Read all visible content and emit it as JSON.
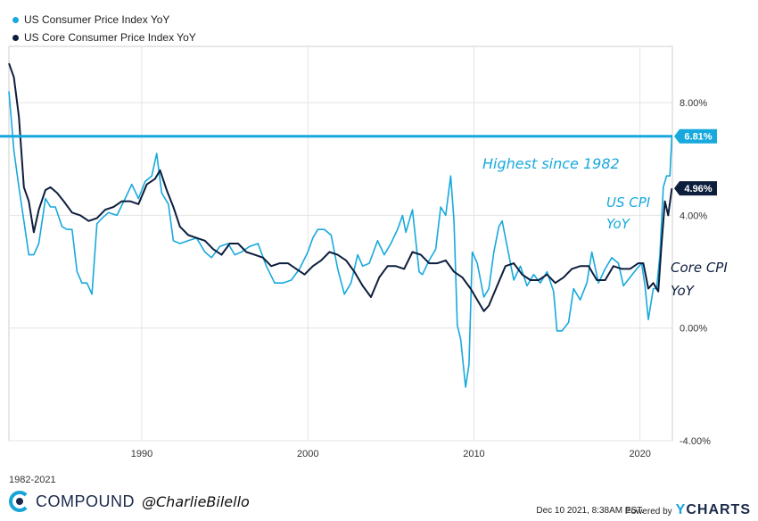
{
  "legend": [
    {
      "label": "US Consumer Price Index YoY",
      "color": "#17a9dd"
    },
    {
      "label": "US Core Consumer Price Index YoY",
      "color": "#0d1e3d"
    }
  ],
  "annotations": {
    "highest": "Highest since 1982",
    "cpi_line1": "US CPI",
    "cpi_line2": "YoY",
    "core_line1": "Core CPI",
    "core_line2": "YoY"
  },
  "footer": {
    "range": "1982-2021",
    "brand": "COMPOUND",
    "handle": "@CharlieBilello",
    "timestamp": "Dec 10 2021, 8:38AM EST.",
    "powered_by": "Powered by",
    "ycharts_y": "Y",
    "ycharts_rest": "CHARTS"
  },
  "chart_data": {
    "type": "line",
    "title": "",
    "xlabel": "",
    "ylabel": "",
    "xlim": [
      1982,
      2021.95
    ],
    "ylim": [
      -4,
      10
    ],
    "x_ticks": [
      1990,
      2000,
      2010,
      2020
    ],
    "y_ticks": [
      {
        "v": 8,
        "label": "8.00%"
      },
      {
        "v": 4,
        "label": "4.00%"
      },
      {
        "v": 0,
        "label": "0.00%"
      },
      {
        "v": -4,
        "label": "-4.00%"
      }
    ],
    "grid": true,
    "reference_line": {
      "value": 6.81,
      "label": "Highest since 1982"
    },
    "end_labels": [
      {
        "series": "US Consumer Price Index YoY",
        "value": 6.81,
        "label": "6.81%"
      },
      {
        "series": "US Core Consumer Price Index YoY",
        "value": 4.96,
        "label": "4.96%"
      }
    ],
    "series": [
      {
        "name": "US Consumer Price Index YoY",
        "color": "#17a9dd",
        "x": [
          1982.0,
          1982.3,
          1982.6,
          1982.9,
          1983.2,
          1983.5,
          1983.8,
          1984.2,
          1984.5,
          1984.8,
          1985.2,
          1985.5,
          1985.8,
          1986.1,
          1986.4,
          1986.7,
          1987.0,
          1987.3,
          1987.6,
          1988.0,
          1988.5,
          1989.0,
          1989.4,
          1989.8,
          1990.2,
          1990.6,
          1990.9,
          1991.2,
          1991.6,
          1991.9,
          1992.3,
          1992.8,
          1993.3,
          1993.8,
          1994.2,
          1994.7,
          1995.2,
          1995.6,
          1996.0,
          1996.5,
          1997.0,
          1997.5,
          1998.0,
          1998.5,
          1999.0,
          1999.5,
          2000.0,
          2000.3,
          2000.6,
          2001.0,
          2001.4,
          2001.8,
          2002.2,
          2002.6,
          2003.0,
          2003.3,
          2003.7,
          2004.2,
          2004.6,
          2005.0,
          2005.4,
          2005.7,
          2005.9,
          2006.3,
          2006.7,
          2006.9,
          2007.3,
          2007.7,
          2008.0,
          2008.3,
          2008.6,
          2008.8,
          2009.0,
          2009.2,
          2009.5,
          2009.7,
          2009.9,
          2010.2,
          2010.6,
          2010.9,
          2011.2,
          2011.5,
          2011.7,
          2012.0,
          2012.4,
          2012.8,
          2013.2,
          2013.6,
          2014.0,
          2014.4,
          2014.8,
          2015.0,
          2015.3,
          2015.7,
          2016.0,
          2016.4,
          2016.8,
          2017.1,
          2017.5,
          2017.9,
          2018.3,
          2018.7,
          2019.0,
          2019.4,
          2019.8,
          2020.1,
          2020.3,
          2020.5,
          2020.8,
          2021.0,
          2021.2,
          2021.4,
          2021.6,
          2021.8,
          2021.92
        ],
        "y": [
          8.4,
          6.3,
          5.0,
          3.8,
          2.6,
          2.6,
          3.0,
          4.6,
          4.3,
          4.3,
          3.6,
          3.5,
          3.5,
          2.0,
          1.6,
          1.6,
          1.2,
          3.7,
          3.9,
          4.1,
          4.0,
          4.6,
          5.1,
          4.6,
          5.2,
          5.4,
          6.2,
          4.8,
          4.4,
          3.1,
          3.0,
          3.1,
          3.2,
          2.7,
          2.5,
          2.9,
          3.0,
          2.6,
          2.7,
          2.9,
          3.0,
          2.2,
          1.6,
          1.6,
          1.7,
          2.1,
          2.7,
          3.2,
          3.5,
          3.5,
          3.3,
          2.1,
          1.2,
          1.6,
          2.6,
          2.2,
          2.3,
          3.1,
          2.6,
          3.0,
          3.5,
          4.0,
          3.4,
          4.2,
          2.0,
          1.9,
          2.4,
          2.8,
          4.3,
          4.0,
          5.4,
          3.8,
          0.1,
          -0.4,
          -2.1,
          -1.3,
          2.7,
          2.3,
          1.1,
          1.4,
          2.7,
          3.6,
          3.8,
          2.9,
          1.7,
          2.2,
          1.5,
          1.9,
          1.6,
          2.0,
          1.3,
          -0.1,
          -0.1,
          0.2,
          1.4,
          1.0,
          1.6,
          2.7,
          1.6,
          2.1,
          2.5,
          2.3,
          1.5,
          1.8,
          2.1,
          2.3,
          1.5,
          0.3,
          1.4,
          1.4,
          2.6,
          5.0,
          5.4,
          5.4,
          6.81
        ]
      },
      {
        "name": "US Core Consumer Price Index YoY",
        "color": "#0d1e3d",
        "x": [
          1982.0,
          1982.3,
          1982.6,
          1982.9,
          1983.2,
          1983.5,
          1983.8,
          1984.2,
          1984.5,
          1984.9,
          1985.3,
          1985.8,
          1986.3,
          1986.8,
          1987.3,
          1987.8,
          1988.3,
          1988.8,
          1989.3,
          1989.8,
          1990.3,
          1990.8,
          1991.1,
          1991.5,
          1991.9,
          1992.3,
          1992.8,
          1993.3,
          1993.8,
          1994.3,
          1994.8,
          1995.3,
          1995.8,
          1996.3,
          1996.8,
          1997.3,
          1997.8,
          1998.3,
          1998.8,
          1999.3,
          1999.8,
          2000.3,
          2000.8,
          2001.3,
          2001.8,
          2002.3,
          2002.8,
          2003.3,
          2003.8,
          2004.3,
          2004.8,
          2005.3,
          2005.8,
          2006.3,
          2006.8,
          2007.3,
          2007.8,
          2008.3,
          2008.8,
          2009.3,
          2009.8,
          2010.3,
          2010.6,
          2010.9,
          2011.4,
          2011.9,
          2012.4,
          2012.9,
          2013.4,
          2013.9,
          2014.4,
          2014.9,
          2015.4,
          2015.9,
          2016.4,
          2016.9,
          2017.4,
          2017.9,
          2018.4,
          2018.9,
          2019.4,
          2019.9,
          2020.2,
          2020.5,
          2020.8,
          2021.1,
          2021.3,
          2021.5,
          2021.7,
          2021.92
        ],
        "y": [
          9.4,
          8.9,
          7.5,
          5.0,
          4.5,
          3.4,
          4.2,
          4.9,
          5.0,
          4.8,
          4.5,
          4.1,
          4.0,
          3.8,
          3.9,
          4.2,
          4.3,
          4.5,
          4.5,
          4.4,
          5.1,
          5.3,
          5.6,
          4.9,
          4.3,
          3.6,
          3.3,
          3.2,
          3.1,
          2.8,
          2.6,
          3.0,
          3.0,
          2.7,
          2.6,
          2.5,
          2.2,
          2.3,
          2.3,
          2.1,
          1.9,
          2.2,
          2.4,
          2.7,
          2.6,
          2.4,
          2.0,
          1.5,
          1.1,
          1.8,
          2.2,
          2.2,
          2.1,
          2.7,
          2.6,
          2.3,
          2.3,
          2.4,
          2.0,
          1.8,
          1.4,
          0.9,
          0.6,
          0.8,
          1.5,
          2.2,
          2.3,
          1.9,
          1.7,
          1.7,
          1.9,
          1.6,
          1.8,
          2.1,
          2.2,
          2.2,
          1.7,
          1.7,
          2.2,
          2.1,
          2.1,
          2.3,
          2.3,
          1.4,
          1.6,
          1.3,
          3.0,
          4.5,
          4.0,
          4.96
        ]
      }
    ]
  }
}
